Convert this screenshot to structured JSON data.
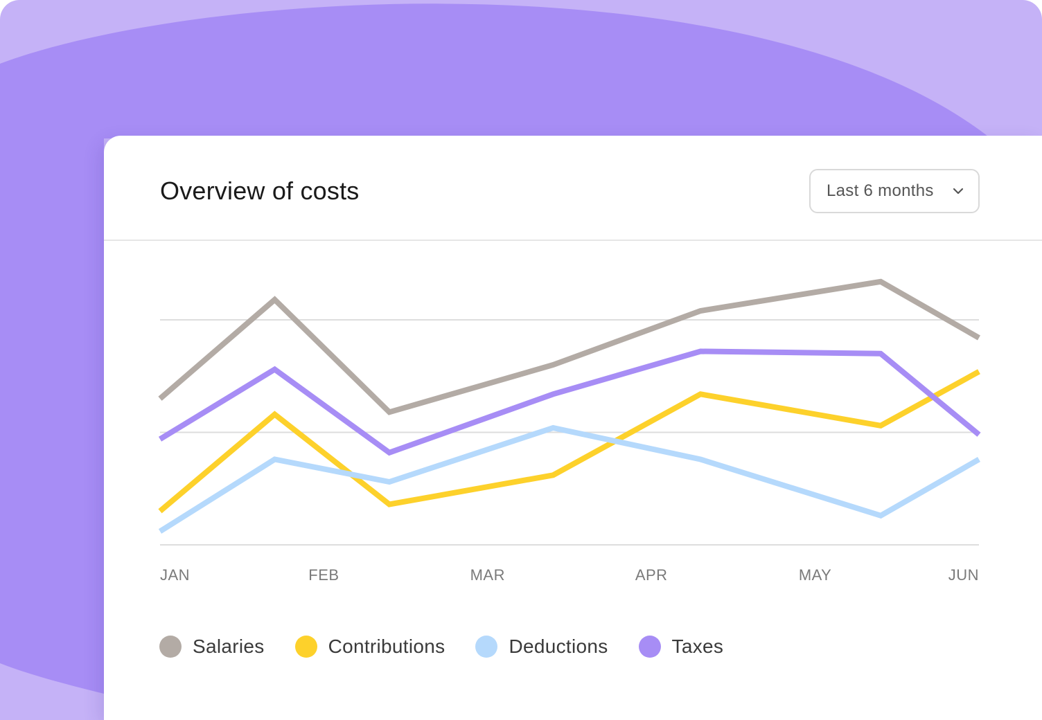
{
  "card": {
    "title": "Overview of costs",
    "range_select": {
      "value": "Last 6 months",
      "icon": "chevron-down-icon"
    }
  },
  "colors": {
    "background": "#a78df5",
    "background_light": "#c5b2f7",
    "gridline": "#dddddd"
  },
  "chart_data": {
    "type": "line",
    "categories": [
      "JAN",
      "FEB",
      "MAR",
      "APR",
      "MAY",
      "JUN"
    ],
    "title": "",
    "xlabel": "",
    "ylabel": "",
    "ylim": [
      0,
      100
    ],
    "grid": true,
    "legend_position": "bottom-left",
    "series": [
      {
        "name": "Salaries",
        "color": "#b3aba5",
        "x": [
          0,
          0.7,
          1.4,
          2.4,
          3.3,
          4.4,
          5.0
        ],
        "values": [
          65,
          109,
          59,
          80,
          104,
          117,
          92
        ]
      },
      {
        "name": "Contributions",
        "color": "#fdd12b",
        "x": [
          0,
          0.7,
          1.4,
          2.4,
          3.3,
          4.4,
          5.0
        ],
        "values": [
          15,
          58,
          18,
          31,
          67,
          53,
          77
        ]
      },
      {
        "name": "Deductions",
        "color": "#b5d9fc",
        "x": [
          0,
          0.7,
          1.4,
          2.4,
          3.3,
          4.4,
          5.0
        ],
        "values": [
          6,
          38,
          28,
          52,
          38,
          13,
          38
        ]
      },
      {
        "name": "Taxes",
        "color": "#a78df5",
        "x": [
          0,
          0.7,
          1.4,
          2.4,
          3.3,
          4.4,
          5.0
        ],
        "values": [
          47,
          78,
          41,
          67,
          86,
          85,
          49
        ]
      }
    ]
  }
}
